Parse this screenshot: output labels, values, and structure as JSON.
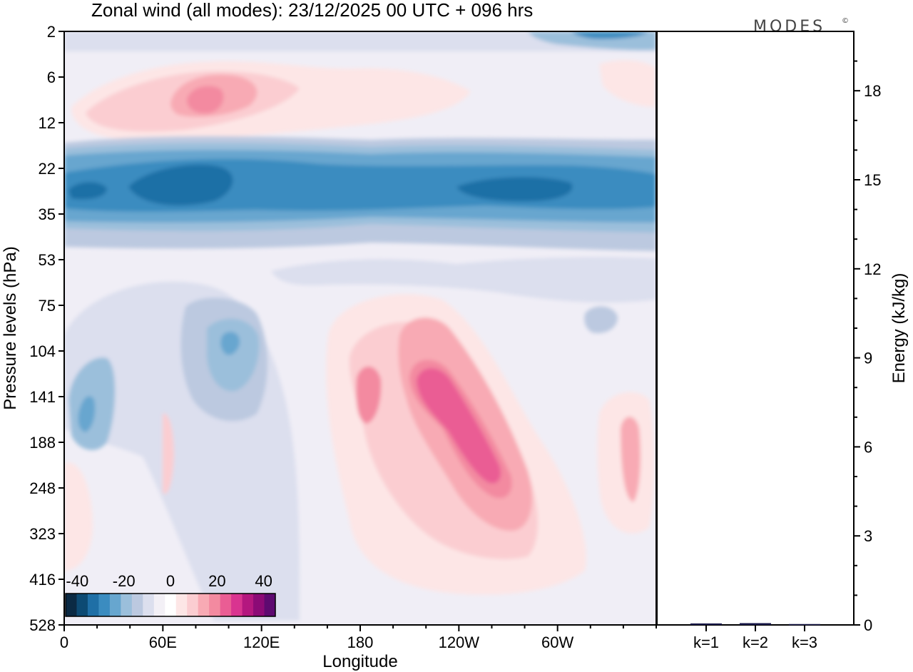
{
  "title": "Zonal wind (all modes):  23/12/2025  00 UTC  + 096 hrs",
  "logo": "MODES",
  "logo_mark": "©",
  "chart_data": [
    {
      "type": "heatmap",
      "title": "Zonal wind (all modes):  23/12/2025  00 UTC  + 096 hrs",
      "xlabel": "Longitude",
      "ylabel": "Pressure levels (hPa)",
      "x_ticks": [
        {
          "lon": 0,
          "label": "0"
        },
        {
          "lon": 60,
          "label": "60E"
        },
        {
          "lon": 120,
          "label": "120E"
        },
        {
          "lon": 180,
          "label": "180"
        },
        {
          "lon": 240,
          "label": "120W"
        },
        {
          "lon": 300,
          "label": "60W"
        }
      ],
      "xlim": [
        0,
        360
      ],
      "y_ticks": [
        "2",
        "6",
        "12",
        "22",
        "35",
        "53",
        "75",
        "104",
        "141",
        "188",
        "248",
        "323",
        "416",
        "528"
      ],
      "colorbar": {
        "labels": [
          "-40",
          "-20",
          "0",
          "20",
          "40"
        ],
        "range": [
          -45,
          45
        ],
        "step": 5,
        "colors": [
          "#0b2a44",
          "#0d4a73",
          "#1f6fa6",
          "#3b8cc0",
          "#67a6cf",
          "#9bbfdb",
          "#bcc9e0",
          "#dcdfee",
          "#f3f0f6",
          "#ffffff",
          "#fde6e6",
          "#fbcdd1",
          "#f8aab4",
          "#f38aa0",
          "#ea5d94",
          "#d93490",
          "#b4177f",
          "#8c0a76",
          "#5e0a70"
        ]
      },
      "features": [
        {
          "name": "stratospheric-easterly-band",
          "lon_range": [
            0,
            360
          ],
          "levels": "22-35 hPa",
          "value": -30
        },
        {
          "name": "upper-westerly-maximum",
          "lon_range": [
            60,
            110
          ],
          "levels": "6-12 hPa",
          "value": 20
        },
        {
          "name": "subtropical-jet-core",
          "lon_range": [
            205,
            255
          ],
          "levels": "104-248 hPa",
          "value": 25
        },
        {
          "name": "easterly-pocket",
          "lon_range": [
            75,
            125
          ],
          "levels": "75-141 hPa",
          "value": -15
        },
        {
          "name": "westerly-pocket",
          "lon_range": [
            325,
            345
          ],
          "levels": "141-248 hPa",
          "value": 15
        }
      ]
    },
    {
      "type": "bar",
      "ylabel": "Energy (kJ/kg)",
      "categories": [
        "k=1",
        "k=2",
        "k=3"
      ],
      "values": [
        0.05,
        0.06,
        0.03
      ],
      "ylim": [
        0,
        20
      ],
      "y_ticks": [
        0,
        3,
        6,
        9,
        12,
        15,
        18
      ]
    }
  ]
}
